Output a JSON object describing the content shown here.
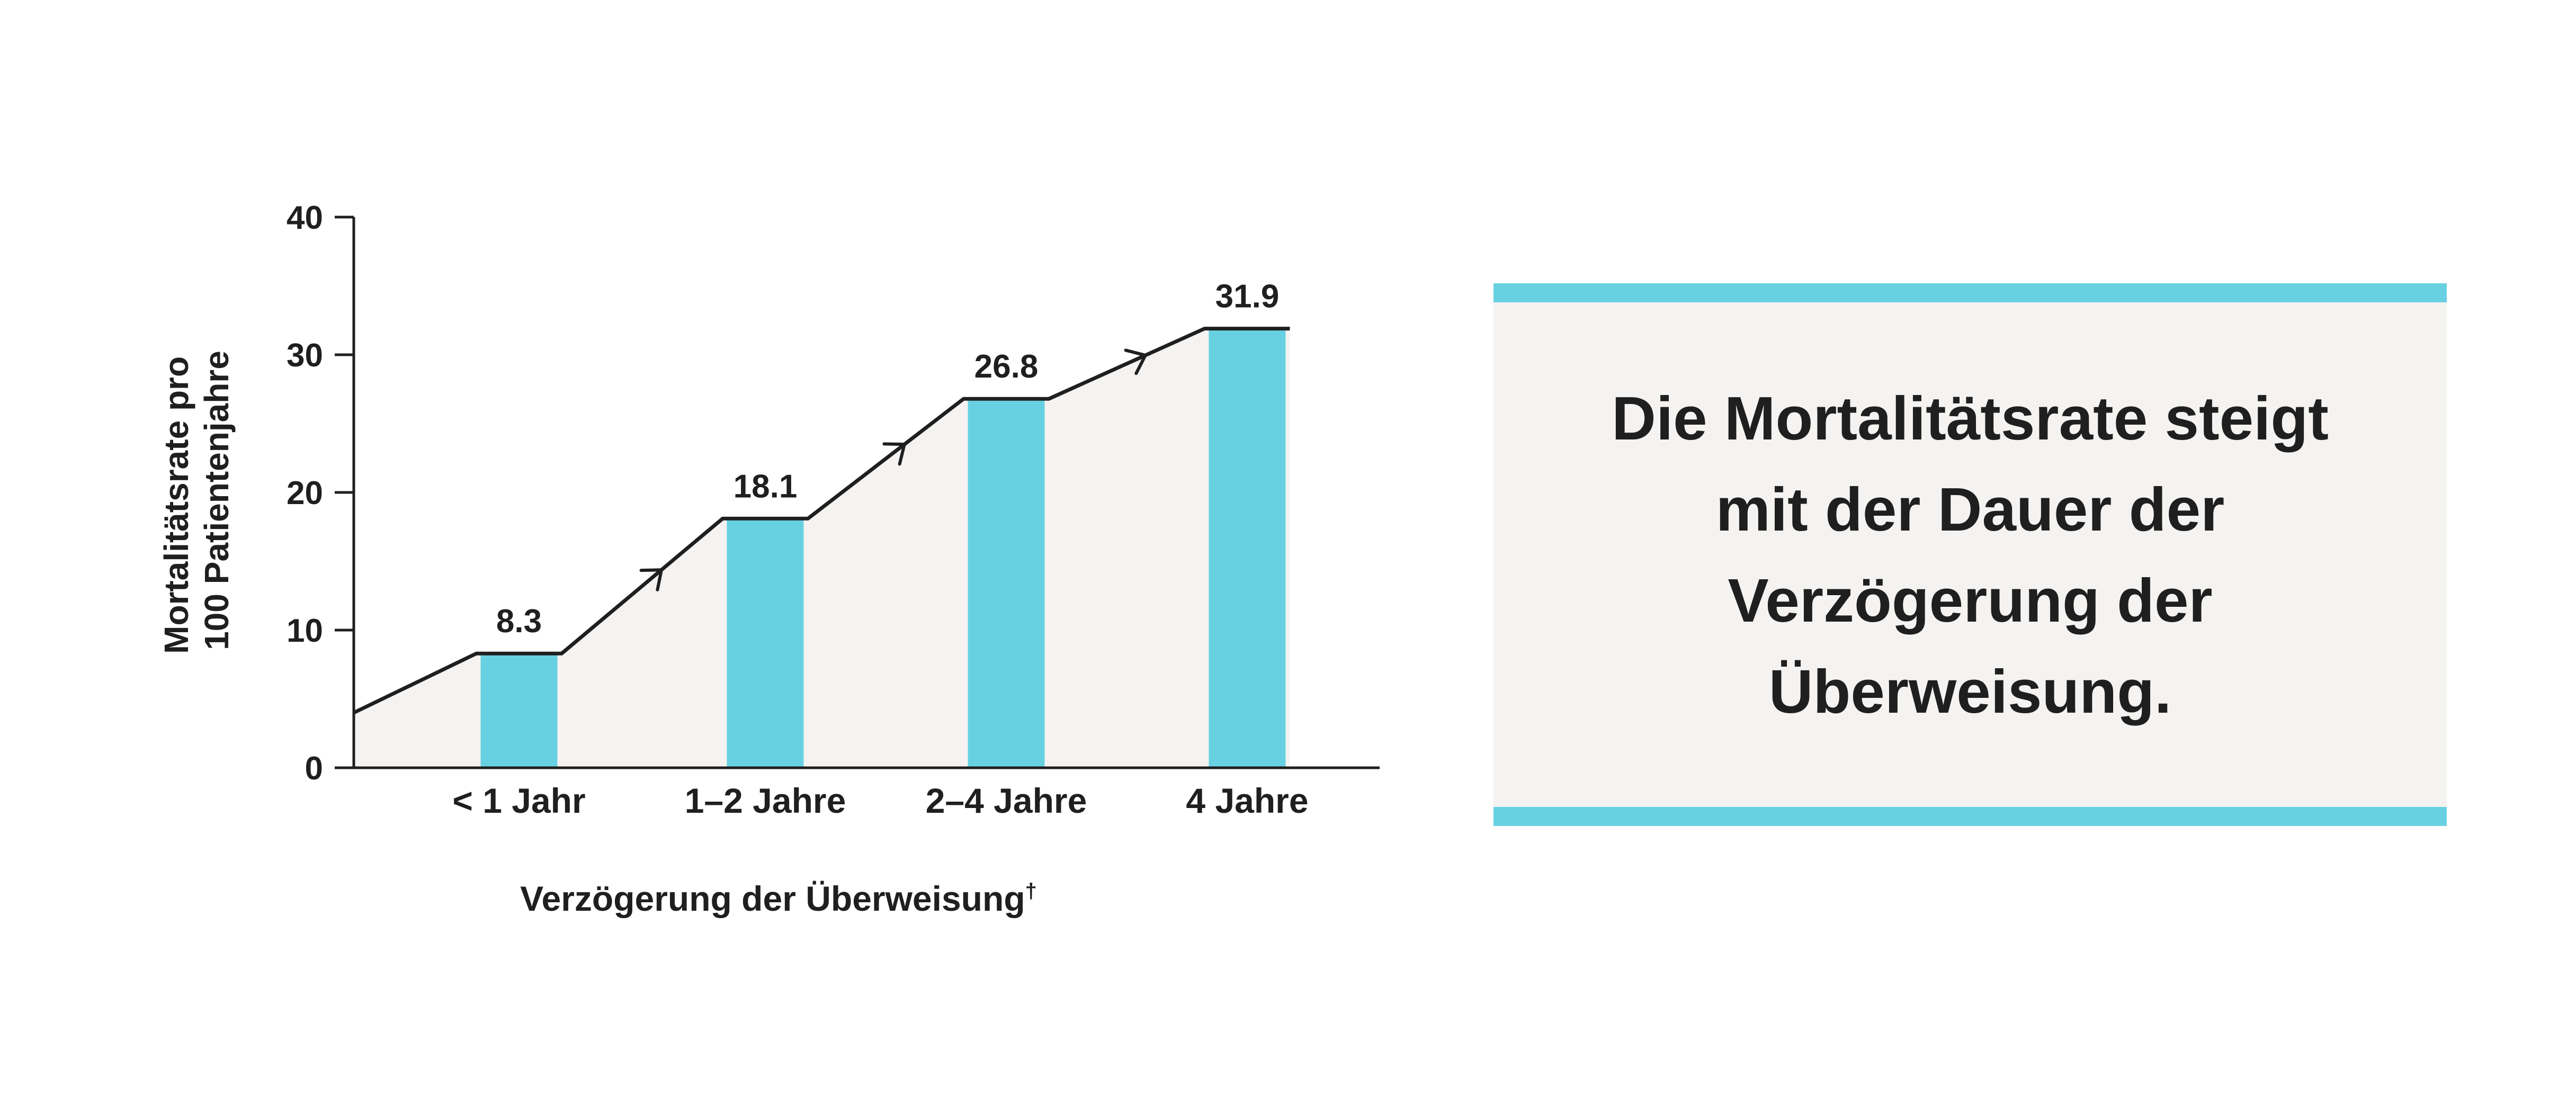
{
  "chart_data": {
    "type": "bar",
    "categories": [
      "< 1 Jahr",
      "1–2 Jahre",
      "2–4 Jahre",
      "4 Jahre"
    ],
    "values": [
      8.3,
      18.1,
      26.8,
      31.9
    ],
    "data_labels": [
      "8.3",
      "18.1",
      "26.8",
      "31.9"
    ],
    "xlabel": "Verzögerung der Überweisung",
    "xlabel_marker": "†",
    "ylabel_lines": [
      "Mortalitätsrate pro",
      "100 Patientenjahre"
    ],
    "ylim": [
      0,
      40
    ],
    "yticks": [
      0,
      10,
      20,
      30,
      40
    ],
    "trend_line_start_value": 4,
    "grid": false,
    "legend": "none",
    "colors": {
      "bar": "#68d1e1",
      "area": "#f4f3f1",
      "line": "#1f1f1f",
      "text": "#1f1f1f"
    }
  },
  "callout": {
    "lines": [
      "Die Mortalitätsrate steigt",
      "mit der Dauer der",
      "Verzögerung der",
      "Überweisung."
    ],
    "colors": {
      "border": "#68d1e1",
      "background": "#f4f3f1"
    }
  }
}
